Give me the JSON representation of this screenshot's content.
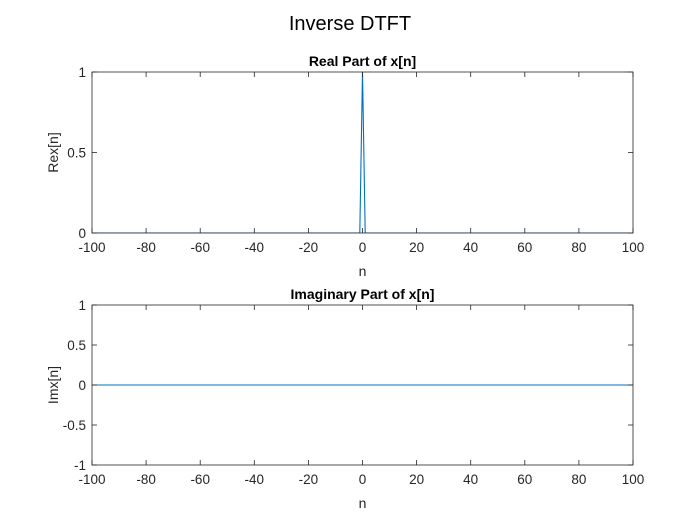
{
  "figure": {
    "suptitle": "Inverse DTFT"
  },
  "chart_data": [
    {
      "type": "line",
      "title": "Real Part of x[n]",
      "xlabel": "n",
      "ylabel": "Rex[n]",
      "xlim": [
        -100,
        100
      ],
      "ylim": [
        0,
        1
      ],
      "xticks": [
        -100,
        -80,
        -60,
        -40,
        -20,
        0,
        20,
        40,
        60,
        80,
        100
      ],
      "xtick_labels": [
        "-100",
        "-80",
        "-60",
        "-40",
        "-20",
        "0",
        "20",
        "40",
        "60",
        "80",
        "100"
      ],
      "yticks": [
        0,
        0.5,
        1
      ],
      "ytick_labels": [
        "0",
        "0.5",
        "1"
      ],
      "grid": false,
      "series": [
        {
          "color": "#0072BD",
          "x": [
            -100,
            -1,
            0,
            1,
            100
          ],
          "y": [
            0,
            0,
            1,
            0,
            0
          ]
        }
      ]
    },
    {
      "type": "line",
      "title": "Imaginary Part of x[n]",
      "xlabel": "n",
      "ylabel": "Imx[n]",
      "xlim": [
        -100,
        100
      ],
      "ylim": [
        -1,
        1
      ],
      "xticks": [
        -100,
        -80,
        -60,
        -40,
        -20,
        0,
        20,
        40,
        60,
        80,
        100
      ],
      "xtick_labels": [
        "-100",
        "-80",
        "-60",
        "-40",
        "-20",
        "0",
        "20",
        "40",
        "60",
        "80",
        "100"
      ],
      "yticks": [
        -1,
        -0.5,
        0,
        0.5,
        1
      ],
      "ytick_labels": [
        "-1",
        "-0.5",
        "0",
        "0.5",
        "1"
      ],
      "grid": false,
      "series": [
        {
          "color": "#0072BD",
          "x": [
            -100,
            100
          ],
          "y": [
            0,
            0
          ]
        }
      ]
    }
  ]
}
